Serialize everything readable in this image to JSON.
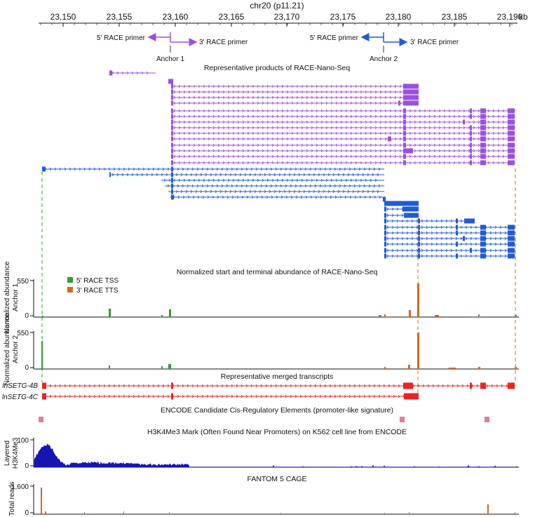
{
  "chromosome": {
    "label": "chr20 (p11.21)",
    "unit": "kb",
    "ticks": [
      "23,150",
      "23,155",
      "23,160",
      "23,165",
      "23,170",
      "23,175",
      "23,180",
      "23,185",
      "23,190"
    ]
  },
  "primers": {
    "anchor1": {
      "primer5": "5' RACE primer",
      "primer3": "3' RACE primer",
      "anchor": "Anchor 1"
    },
    "anchor2": {
      "primer5": "5' RACE primer",
      "primer3": "3' RACE primer",
      "anchor": "Anchor 2"
    }
  },
  "sections": {
    "products": "Representative products of RACE-Nano-Seq",
    "abundance": "Normalized start and terminal abundance of RACE-Nano-Seq",
    "merged": "Representative merged transcripts",
    "encode": "ENCODE Candidate Cis-Regulatory Elements (promoter-like signature)",
    "h3k4me3": "H3K4Me3 Mark (Often Found Near Promoters) on K562 cell line from ENCODE",
    "cage": "FANTOM 5 CAGE"
  },
  "legend": {
    "tss": "5' RACE TSS",
    "tts": "3' RACE TTS"
  },
  "abundance_panels": {
    "ylabel1": "Normalized abundance",
    "anchor1": {
      "label": "Anchor 1",
      "ymax": "550",
      "ymin": "0"
    },
    "anchor2": {
      "label": "Anchor 2",
      "ymax": "550",
      "ymin": "0"
    }
  },
  "transcripts": {
    "a": "lnSETG-4B",
    "b": "lnSETG-4C"
  },
  "h3k4me3_panel": {
    "ylabel1": "Layered",
    "ylabel2": "H3K4Me3",
    "ymax": "100",
    "ymin": "0"
  },
  "cage_panel": {
    "ylabel": "Total reads",
    "ymax": "1,600",
    "ymin": "0"
  },
  "colors": {
    "purple": "#9b4fe0",
    "blue": "#1f5bd6",
    "green": "#2ea02e",
    "orange": "#d2691e",
    "red": "#ee2222",
    "pink": "#e07aa0",
    "navy": "#1515b0"
  }
}
